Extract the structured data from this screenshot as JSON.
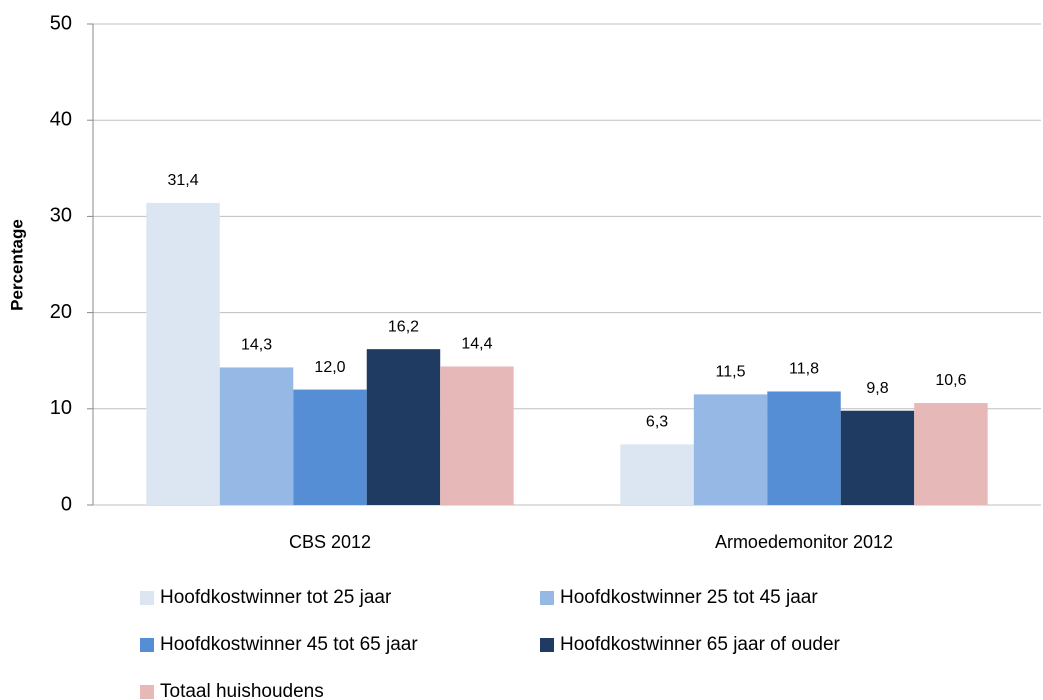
{
  "chart_data": {
    "type": "bar",
    "y_label": "Percentage",
    "categories": [
      "CBS 2012",
      "Armoedemonitor 2012"
    ],
    "series": [
      {
        "name": "Hoofdkostwinner tot 25 jaar",
        "color": "#dce6f2",
        "values": [
          31.4,
          6.3
        ],
        "value_labels": [
          "31,4",
          "6,3"
        ]
      },
      {
        "name": "Hoofdkostwinner 25 tot 45 jaar",
        "color": "#95b8e4",
        "values": [
          14.3,
          11.5
        ],
        "value_labels": [
          "14,3",
          "11,5"
        ]
      },
      {
        "name": "Hoofdkostwinner 45 tot 65 jaar",
        "color": "#558ed5",
        "values": [
          12.0,
          11.8
        ],
        "value_labels": [
          "12,0",
          "11,8"
        ]
      },
      {
        "name": "Hoofdkostwinner 65 jaar of ouder",
        "color": "#1f3b61",
        "values": [
          16.2,
          9.8
        ],
        "value_labels": [
          "16,2",
          "9,8"
        ]
      },
      {
        "name": "Totaal huishoudens",
        "color": "#e6b9b8",
        "values": [
          14.4,
          10.6
        ],
        "value_labels": [
          "14,4",
          "10,6"
        ]
      }
    ],
    "ylim": [
      0,
      50
    ],
    "yticks": [
      0,
      10,
      20,
      30,
      40,
      50
    ],
    "grid": true
  }
}
